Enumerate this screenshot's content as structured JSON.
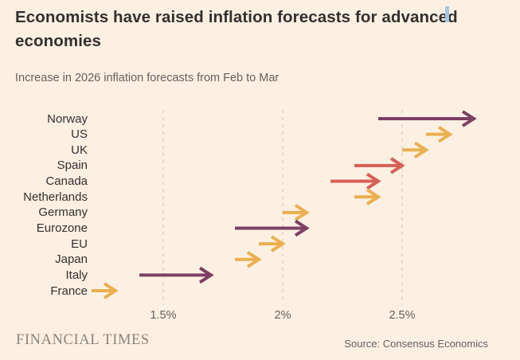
{
  "header": {
    "title": "Economists have raised inflation forecasts for advanced economies",
    "subtitle": "Increase in 2026 inflation forecasts from Feb to Mar"
  },
  "footer": {
    "brand": "FINANCIAL TIMES",
    "source": "Source: Consensus Economics"
  },
  "colors": {
    "background": "#FCF0E3",
    "title_text": "#33302E",
    "muted_text": "#66605C",
    "gridline": "#CCC3B9",
    "brand_text": "#8C8377",
    "purple": "#7D3F64",
    "red": "#D65F57",
    "amber": "#EAAF50"
  },
  "chart_data": {
    "type": "arrow",
    "title": "Increase in 2026 inflation forecasts from Feb to Mar",
    "xlabel": "",
    "ylabel": "",
    "unit": "%",
    "categories": [
      "Norway",
      "US",
      "UK",
      "Spain",
      "Canada",
      "Netherlands",
      "Germany",
      "Eurozone",
      "EU",
      "Japan",
      "Italy",
      "France"
    ],
    "series": [
      {
        "name": "Feb forecast",
        "values": [
          2.4,
          2.6,
          2.5,
          2.3,
          2.2,
          2.3,
          2.0,
          1.8,
          1.9,
          1.8,
          1.4,
          1.2
        ]
      },
      {
        "name": "Mar forecast",
        "values": [
          2.8,
          2.7,
          2.6,
          2.5,
          2.4,
          2.4,
          2.1,
          2.1,
          2.0,
          1.9,
          1.7,
          1.3
        ]
      }
    ],
    "arrow_colors": [
      "purple",
      "amber",
      "amber",
      "red",
      "red",
      "amber",
      "amber",
      "purple",
      "amber",
      "amber",
      "purple",
      "amber"
    ],
    "x_ticks": [
      1.5,
      2,
      2.5
    ],
    "x_tick_labels": [
      "1.5%",
      "2%",
      "2.5%"
    ],
    "xlim": [
      1.17,
      2.97
    ],
    "grid": "vertical-dashed"
  }
}
